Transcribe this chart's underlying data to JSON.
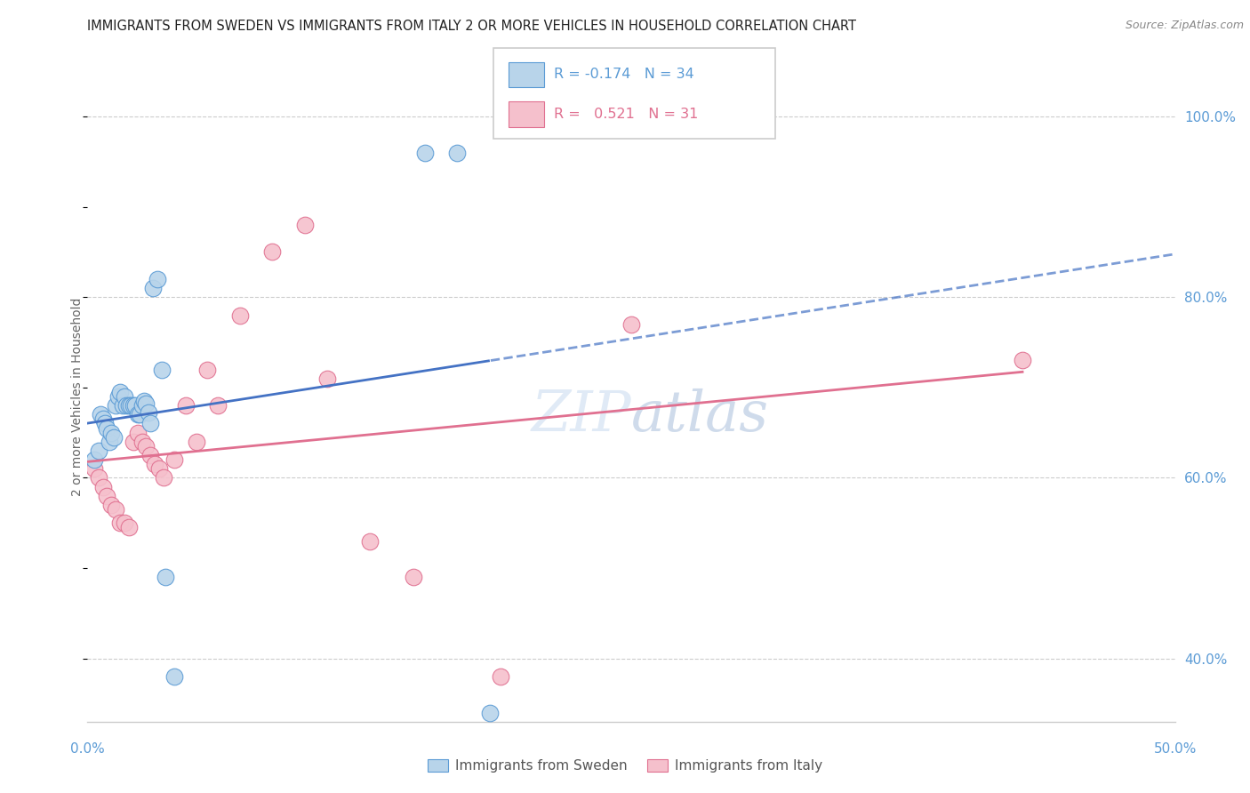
{
  "title": "IMMIGRANTS FROM SWEDEN VS IMMIGRANTS FROM ITALY 2 OR MORE VEHICLES IN HOUSEHOLD CORRELATION CHART",
  "source": "Source: ZipAtlas.com",
  "ylabel": "2 or more Vehicles in Household",
  "legend_sweden_R": "-0.174",
  "legend_sweden_N": "34",
  "legend_italy_R": "0.521",
  "legend_italy_N": "31",
  "sweden_fill": "#b8d4ea",
  "sweden_edge": "#5b9bd5",
  "italy_fill": "#f5c0cc",
  "italy_edge": "#e07090",
  "sweden_line_color": "#4472c4",
  "italy_line_color": "#e07090",
  "watermark_color": "#d0dff0",
  "grid_color": "#cccccc",
  "label_color": "#5b9bd5",
  "xlim": [
    0.0,
    0.5
  ],
  "ylim": [
    0.33,
    1.05
  ],
  "yticks": [
    0.4,
    0.6,
    0.8,
    1.0
  ],
  "ytick_labels": [
    "40.0%",
    "60.0%",
    "80.0%",
    "100.0%"
  ],
  "sweden_x": [
    0.003,
    0.005,
    0.006,
    0.007,
    0.008,
    0.009,
    0.01,
    0.011,
    0.012,
    0.013,
    0.014,
    0.015,
    0.016,
    0.017,
    0.018,
    0.019,
    0.02,
    0.021,
    0.022,
    0.023,
    0.024,
    0.025,
    0.026,
    0.027,
    0.028,
    0.029,
    0.03,
    0.032,
    0.034,
    0.036,
    0.04,
    0.155,
    0.17,
    0.185
  ],
  "sweden_y": [
    0.62,
    0.63,
    0.67,
    0.665,
    0.66,
    0.655,
    0.64,
    0.65,
    0.645,
    0.68,
    0.69,
    0.695,
    0.68,
    0.69,
    0.68,
    0.68,
    0.68,
    0.68,
    0.68,
    0.67,
    0.67,
    0.68,
    0.685,
    0.682,
    0.672,
    0.66,
    0.81,
    0.82,
    0.72,
    0.49,
    0.38,
    0.96,
    0.96,
    0.34
  ],
  "italy_x": [
    0.003,
    0.005,
    0.007,
    0.009,
    0.011,
    0.013,
    0.015,
    0.017,
    0.019,
    0.021,
    0.023,
    0.025,
    0.027,
    0.029,
    0.031,
    0.033,
    0.035,
    0.04,
    0.045,
    0.05,
    0.055,
    0.06,
    0.07,
    0.085,
    0.1,
    0.11,
    0.13,
    0.15,
    0.19,
    0.25,
    0.43
  ],
  "italy_y": [
    0.61,
    0.6,
    0.59,
    0.58,
    0.57,
    0.565,
    0.55,
    0.55,
    0.545,
    0.64,
    0.65,
    0.64,
    0.635,
    0.625,
    0.615,
    0.61,
    0.6,
    0.62,
    0.68,
    0.64,
    0.72,
    0.68,
    0.78,
    0.85,
    0.88,
    0.71,
    0.53,
    0.49,
    0.38,
    0.77,
    0.73
  ]
}
